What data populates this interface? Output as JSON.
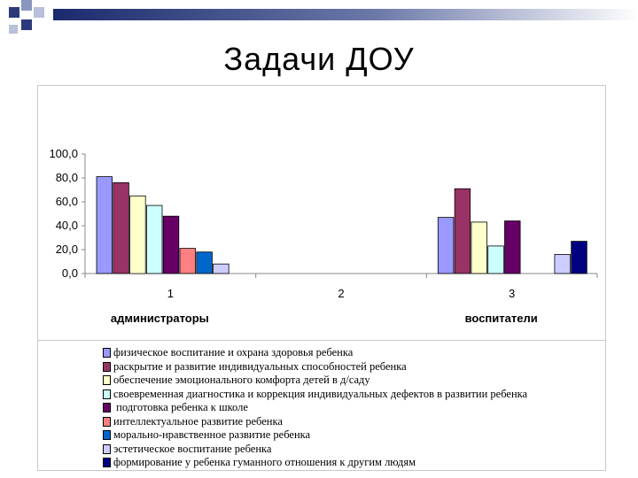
{
  "page": {
    "title": "Задачи ДОУ"
  },
  "chart_data": {
    "type": "bar",
    "categories": [
      "1",
      "2",
      "3"
    ],
    "group_labels": [
      "администраторы",
      "",
      "воспитатели"
    ],
    "ylim": [
      0,
      100
    ],
    "yticks": [
      "0,0",
      "20,0",
      "40,0",
      "60,0",
      "80,0",
      "100,0"
    ],
    "grid": false,
    "legend_position": "bottom",
    "series": [
      {
        "name": "физическое воспитание и охрана здоровья ребенка",
        "color": "#9999ff",
        "values": [
          81,
          null,
          47
        ]
      },
      {
        "name": "раскрытие и развитие индивидуальных способностей ребенка",
        "color": "#993366",
        "values": [
          76,
          null,
          71
        ]
      },
      {
        "name": "обеспечение эмоционального комфорта детей в д/саду",
        "color": "#ffffcc",
        "values": [
          65,
          null,
          43
        ]
      },
      {
        "name": "своевременная диагностика и коррекция индивидуальных дефектов в развитии ребенка",
        "color": "#ccffff",
        "values": [
          57,
          null,
          23
        ]
      },
      {
        "name": " подготовка ребенка к школе",
        "color": "#660066",
        "values": [
          48,
          null,
          44
        ]
      },
      {
        "name": "интеллектуальное развитие ребенка",
        "color": "#ff8080",
        "values": [
          21,
          null,
          null
        ]
      },
      {
        "name": "морально-нравственное развитие ребенка",
        "color": "#0066cc",
        "values": [
          18,
          null,
          null
        ]
      },
      {
        "name": "эстетическое воспитание ребенка",
        "color": "#ccccff",
        "values": [
          8,
          null,
          16
        ]
      },
      {
        "name": "формирование у ребенка гуманного отношения к другим людям",
        "color": "#000080",
        "values": [
          null,
          null,
          27
        ]
      }
    ]
  }
}
